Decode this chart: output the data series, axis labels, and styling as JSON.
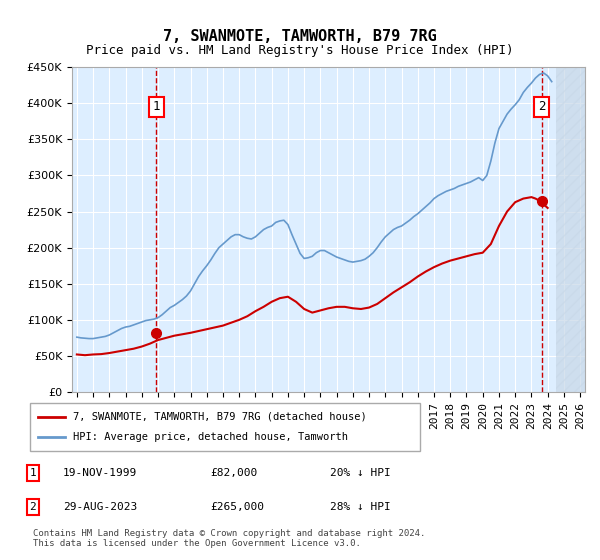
{
  "title": "7, SWANMOTE, TAMWORTH, B79 7RG",
  "subtitle": "Price paid vs. HM Land Registry's House Price Index (HPI)",
  "ylabel_ticks": [
    "£0",
    "£50K",
    "£100K",
    "£150K",
    "£200K",
    "£250K",
    "£300K",
    "£350K",
    "£400K",
    "£450K"
  ],
  "y_values": [
    0,
    50000,
    100000,
    150000,
    200000,
    250000,
    300000,
    350000,
    400000,
    450000
  ],
  "ylim": [
    0,
    450000
  ],
  "x_start_year": 1995,
  "x_end_year": 2026,
  "background_color": "#ddeeff",
  "plot_bg_color": "#ddeeff",
  "hatch_color": "#bbccdd",
  "red_color": "#cc0000",
  "blue_color": "#6699cc",
  "marker1_year": 1999.88,
  "marker1_value": 82000,
  "marker1_label": "1",
  "marker1_date": "19-NOV-1999",
  "marker1_price": "£82,000",
  "marker1_pct": "20% ↓ HPI",
  "marker2_year": 2023.65,
  "marker2_value": 265000,
  "marker2_label": "2",
  "marker2_date": "29-AUG-2023",
  "marker2_price": "£265,000",
  "marker2_pct": "28% ↓ HPI",
  "legend_line1": "7, SWANMOTE, TAMWORTH, B79 7RG (detached house)",
  "legend_line2": "HPI: Average price, detached house, Tamworth",
  "footer": "Contains HM Land Registry data © Crown copyright and database right 2024.\nThis data is licensed under the Open Government Licence v3.0.",
  "hpi_years": [
    1995,
    1995.25,
    1995.5,
    1995.75,
    1996,
    1996.25,
    1996.5,
    1996.75,
    1997,
    1997.25,
    1997.5,
    1997.75,
    1998,
    1998.25,
    1998.5,
    1998.75,
    1999,
    1999.25,
    1999.5,
    1999.75,
    2000,
    2000.25,
    2000.5,
    2000.75,
    2001,
    2001.25,
    2001.5,
    2001.75,
    2002,
    2002.25,
    2002.5,
    2002.75,
    2003,
    2003.25,
    2003.5,
    2003.75,
    2004,
    2004.25,
    2004.5,
    2004.75,
    2005,
    2005.25,
    2005.5,
    2005.75,
    2006,
    2006.25,
    2006.5,
    2006.75,
    2007,
    2007.25,
    2007.5,
    2007.75,
    2008,
    2008.25,
    2008.5,
    2008.75,
    2009,
    2009.25,
    2009.5,
    2009.75,
    2010,
    2010.25,
    2010.5,
    2010.75,
    2011,
    2011.25,
    2011.5,
    2011.75,
    2012,
    2012.25,
    2012.5,
    2012.75,
    2013,
    2013.25,
    2013.5,
    2013.75,
    2014,
    2014.25,
    2014.5,
    2014.75,
    2015,
    2015.25,
    2015.5,
    2015.75,
    2016,
    2016.25,
    2016.5,
    2016.75,
    2017,
    2017.25,
    2017.5,
    2017.75,
    2018,
    2018.25,
    2018.5,
    2018.75,
    2019,
    2019.25,
    2019.5,
    2019.75,
    2020,
    2020.25,
    2020.5,
    2020.75,
    2021,
    2021.25,
    2021.5,
    2021.75,
    2022,
    2022.25,
    2022.5,
    2022.75,
    2023,
    2023.25,
    2023.5,
    2023.75,
    2024,
    2024.25
  ],
  "hpi_values": [
    76000,
    75000,
    74500,
    74000,
    74000,
    75000,
    76000,
    77000,
    79000,
    82000,
    85000,
    88000,
    90000,
    91000,
    93000,
    95000,
    97000,
    99000,
    100000,
    101000,
    103000,
    107000,
    112000,
    117000,
    120000,
    124000,
    128000,
    133000,
    140000,
    150000,
    160000,
    168000,
    175000,
    183000,
    192000,
    200000,
    205000,
    210000,
    215000,
    218000,
    218000,
    215000,
    213000,
    212000,
    215000,
    220000,
    225000,
    228000,
    230000,
    235000,
    237000,
    238000,
    232000,
    218000,
    205000,
    192000,
    185000,
    186000,
    188000,
    193000,
    196000,
    196000,
    193000,
    190000,
    187000,
    185000,
    183000,
    181000,
    180000,
    181000,
    182000,
    184000,
    188000,
    193000,
    200000,
    208000,
    215000,
    220000,
    225000,
    228000,
    230000,
    234000,
    238000,
    243000,
    247000,
    252000,
    257000,
    262000,
    268000,
    272000,
    275000,
    278000,
    280000,
    282000,
    285000,
    287000,
    289000,
    291000,
    294000,
    297000,
    293000,
    300000,
    320000,
    345000,
    365000,
    375000,
    385000,
    392000,
    398000,
    405000,
    415000,
    422000,
    428000,
    435000,
    440000,
    442000,
    438000,
    430000
  ],
  "red_years": [
    1995,
    1995.5,
    1996,
    1996.5,
    1997,
    1997.5,
    1998,
    1998.5,
    1999,
    1999.5,
    2000,
    2000.5,
    2001,
    2002,
    2003,
    2004,
    2005,
    2005.5,
    2006,
    2006.5,
    2007,
    2007.5,
    2008,
    2008.5,
    2009,
    2009.5,
    2010,
    2010.5,
    2011,
    2011.5,
    2012,
    2012.5,
    2013,
    2013.5,
    2014,
    2014.5,
    2015,
    2015.5,
    2016,
    2016.5,
    2017,
    2017.5,
    2018,
    2018.5,
    2019,
    2019.5,
    2020,
    2020.5,
    2021,
    2021.5,
    2022,
    2022.5,
    2023,
    2023.25,
    2023.5,
    2023.75,
    2024
  ],
  "red_values": [
    52000,
    51000,
    52000,
    52500,
    54000,
    56000,
    58000,
    60000,
    63000,
    67000,
    72000,
    75000,
    78000,
    82000,
    87000,
    92000,
    100000,
    105000,
    112000,
    118000,
    125000,
    130000,
    132000,
    125000,
    115000,
    110000,
    113000,
    116000,
    118000,
    118000,
    116000,
    115000,
    117000,
    122000,
    130000,
    138000,
    145000,
    152000,
    160000,
    167000,
    173000,
    178000,
    182000,
    185000,
    188000,
    191000,
    193000,
    205000,
    230000,
    250000,
    263000,
    268000,
    270000,
    268000,
    265000,
    260000,
    255000
  ]
}
